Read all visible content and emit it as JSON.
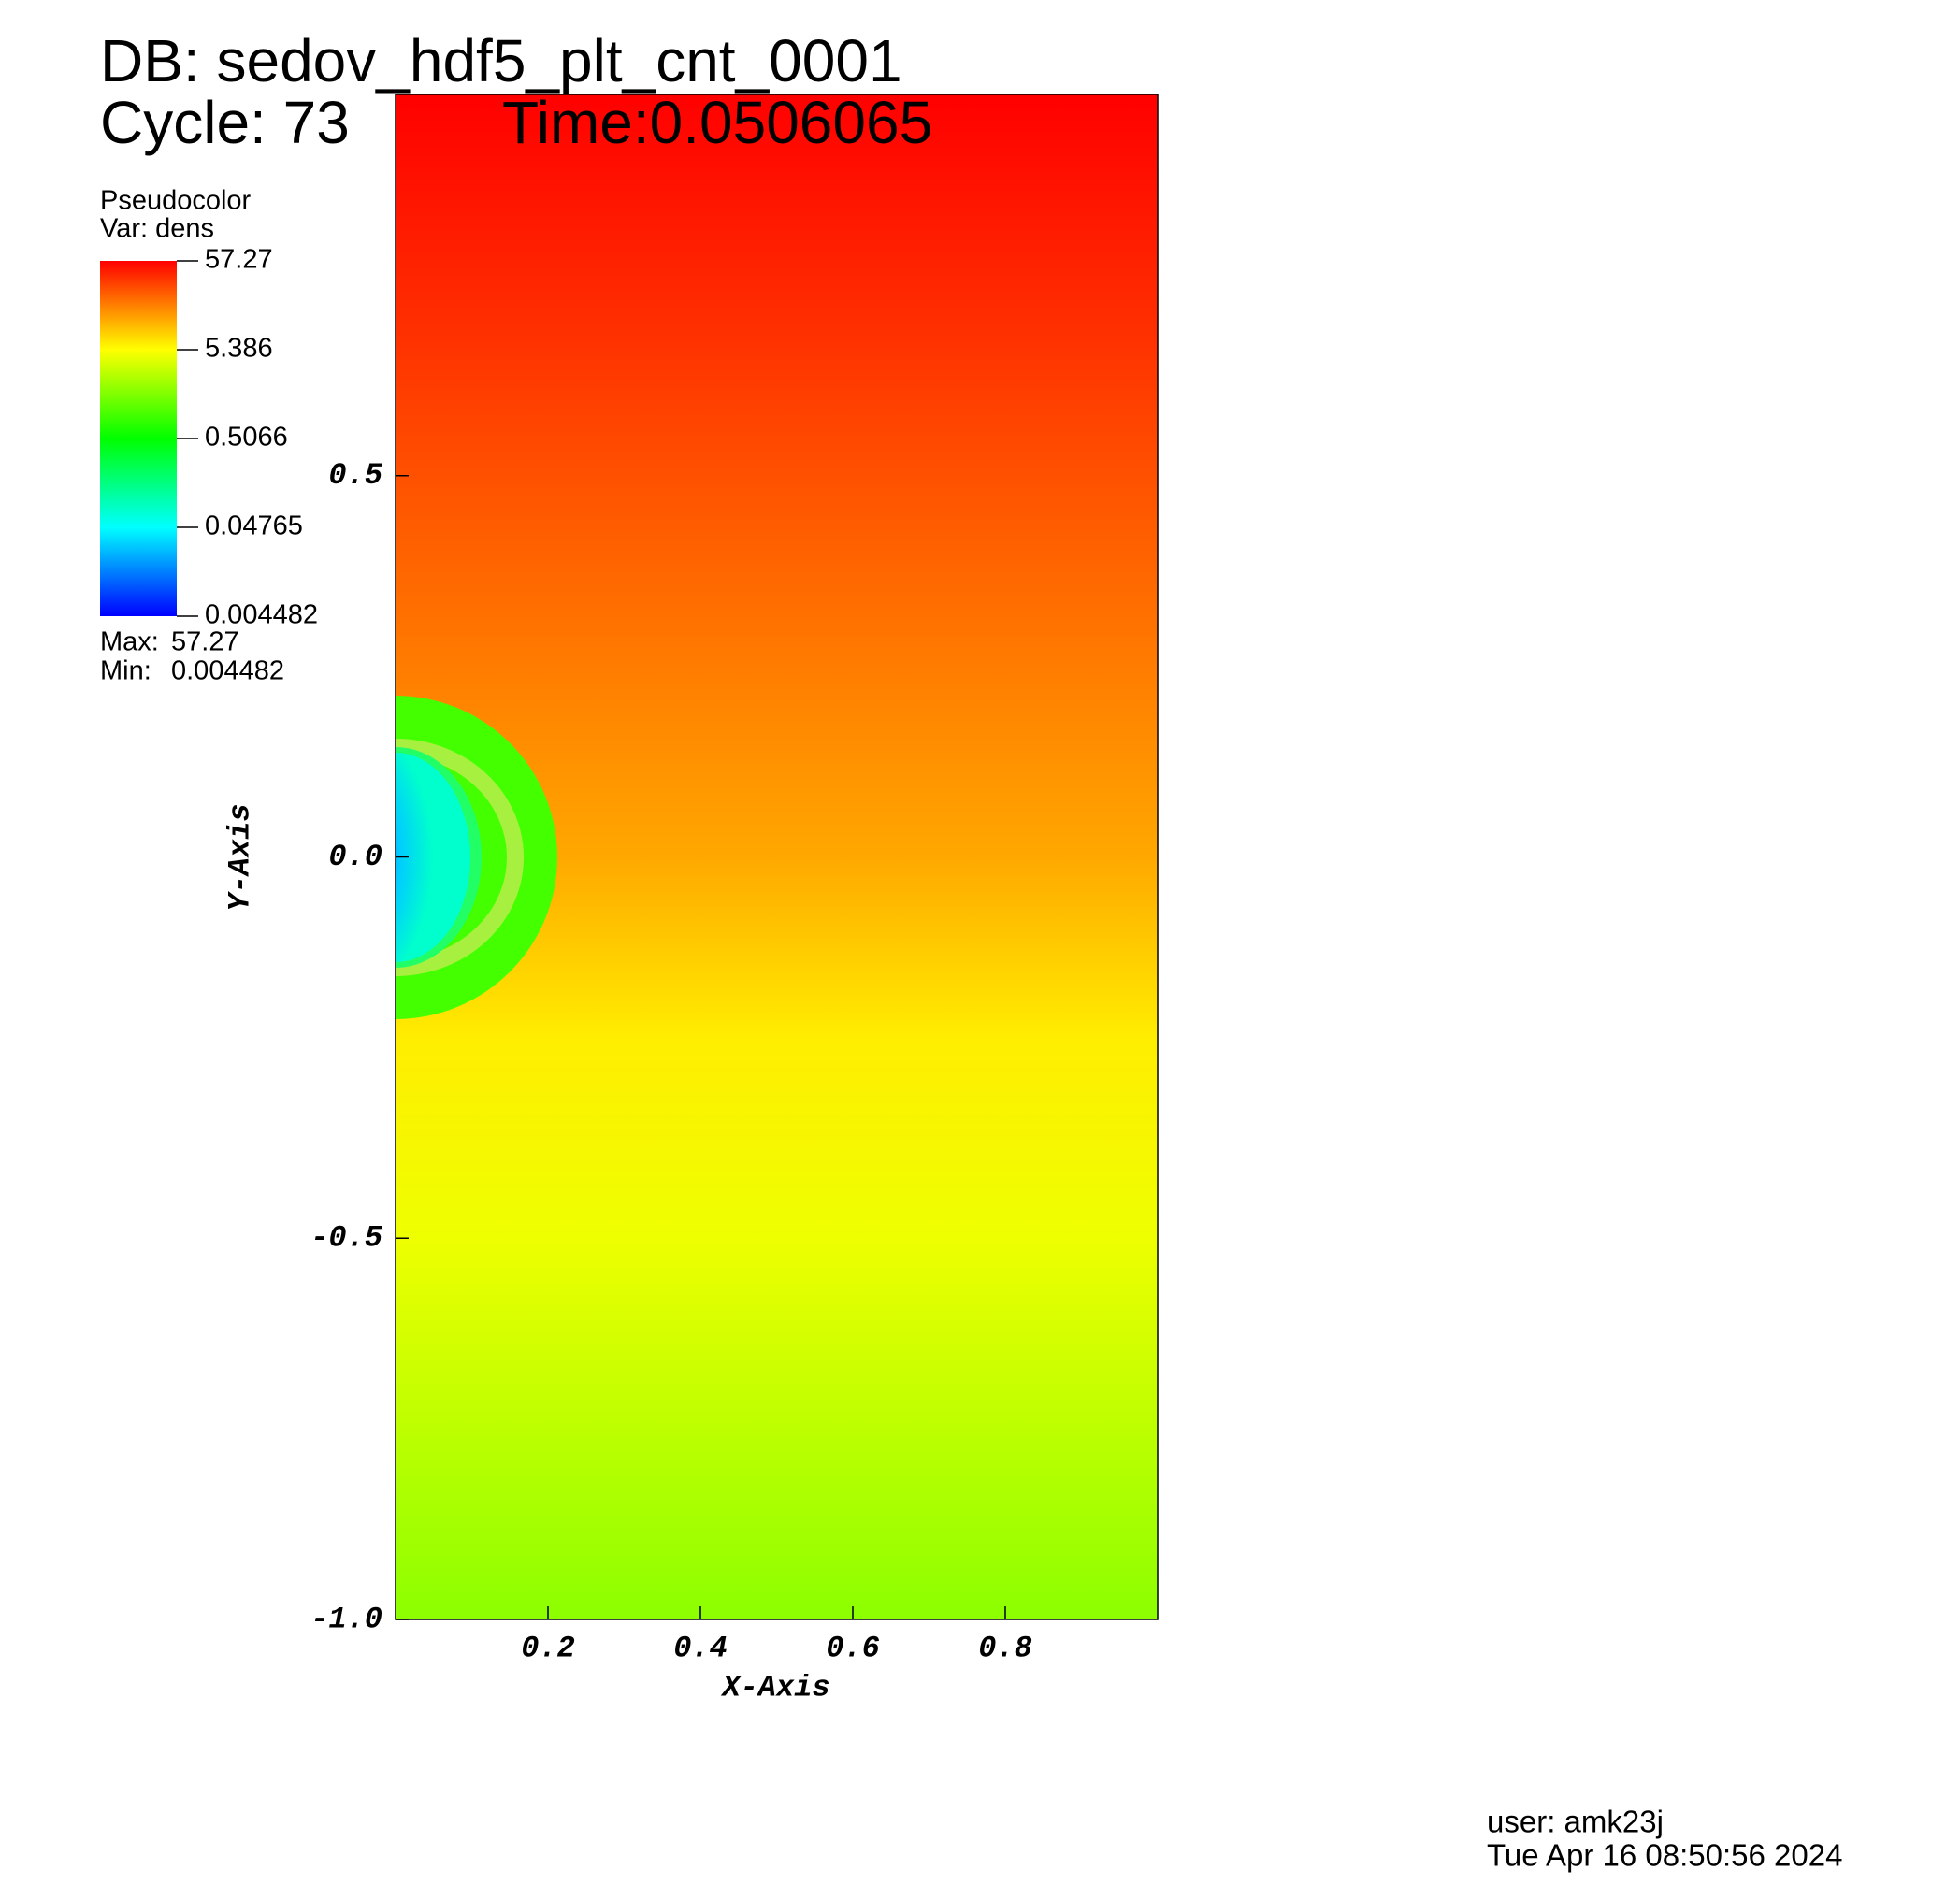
{
  "chart_data": {
    "type": "pseudocolor",
    "database": "DB: sedov_hdf5_plt_cnt_0001",
    "cycle": "Cycle: 73",
    "time": "Time:0.0506065",
    "plot_name": "Pseudocolor",
    "variable": "Var: dens",
    "x_label": "X-Axis",
    "y_label": "Y-Axis",
    "xlim": [
      0,
      1
    ],
    "ylim": [
      -1,
      1
    ],
    "xticks": [
      0.2,
      0.4,
      0.6,
      0.8
    ],
    "yticks": [
      0.5,
      {
        "value": 0,
        "label": "0.0"
      },
      -0.5,
      {
        "value": -1,
        "label": "-1.0"
      }
    ],
    "colorbar": {
      "log": true,
      "lim": [
        0.004482,
        57.27
      ],
      "ticks": [
        57.27,
        5.386,
        0.5066,
        0.04765,
        0.004482
      ],
      "max_label": "Max:",
      "max": 57.27,
      "min_label": "Min:",
      "min": 0.004482
    },
    "user": "user: amk23j",
    "date": "Tue Apr 16 08:50:56 2024"
  }
}
